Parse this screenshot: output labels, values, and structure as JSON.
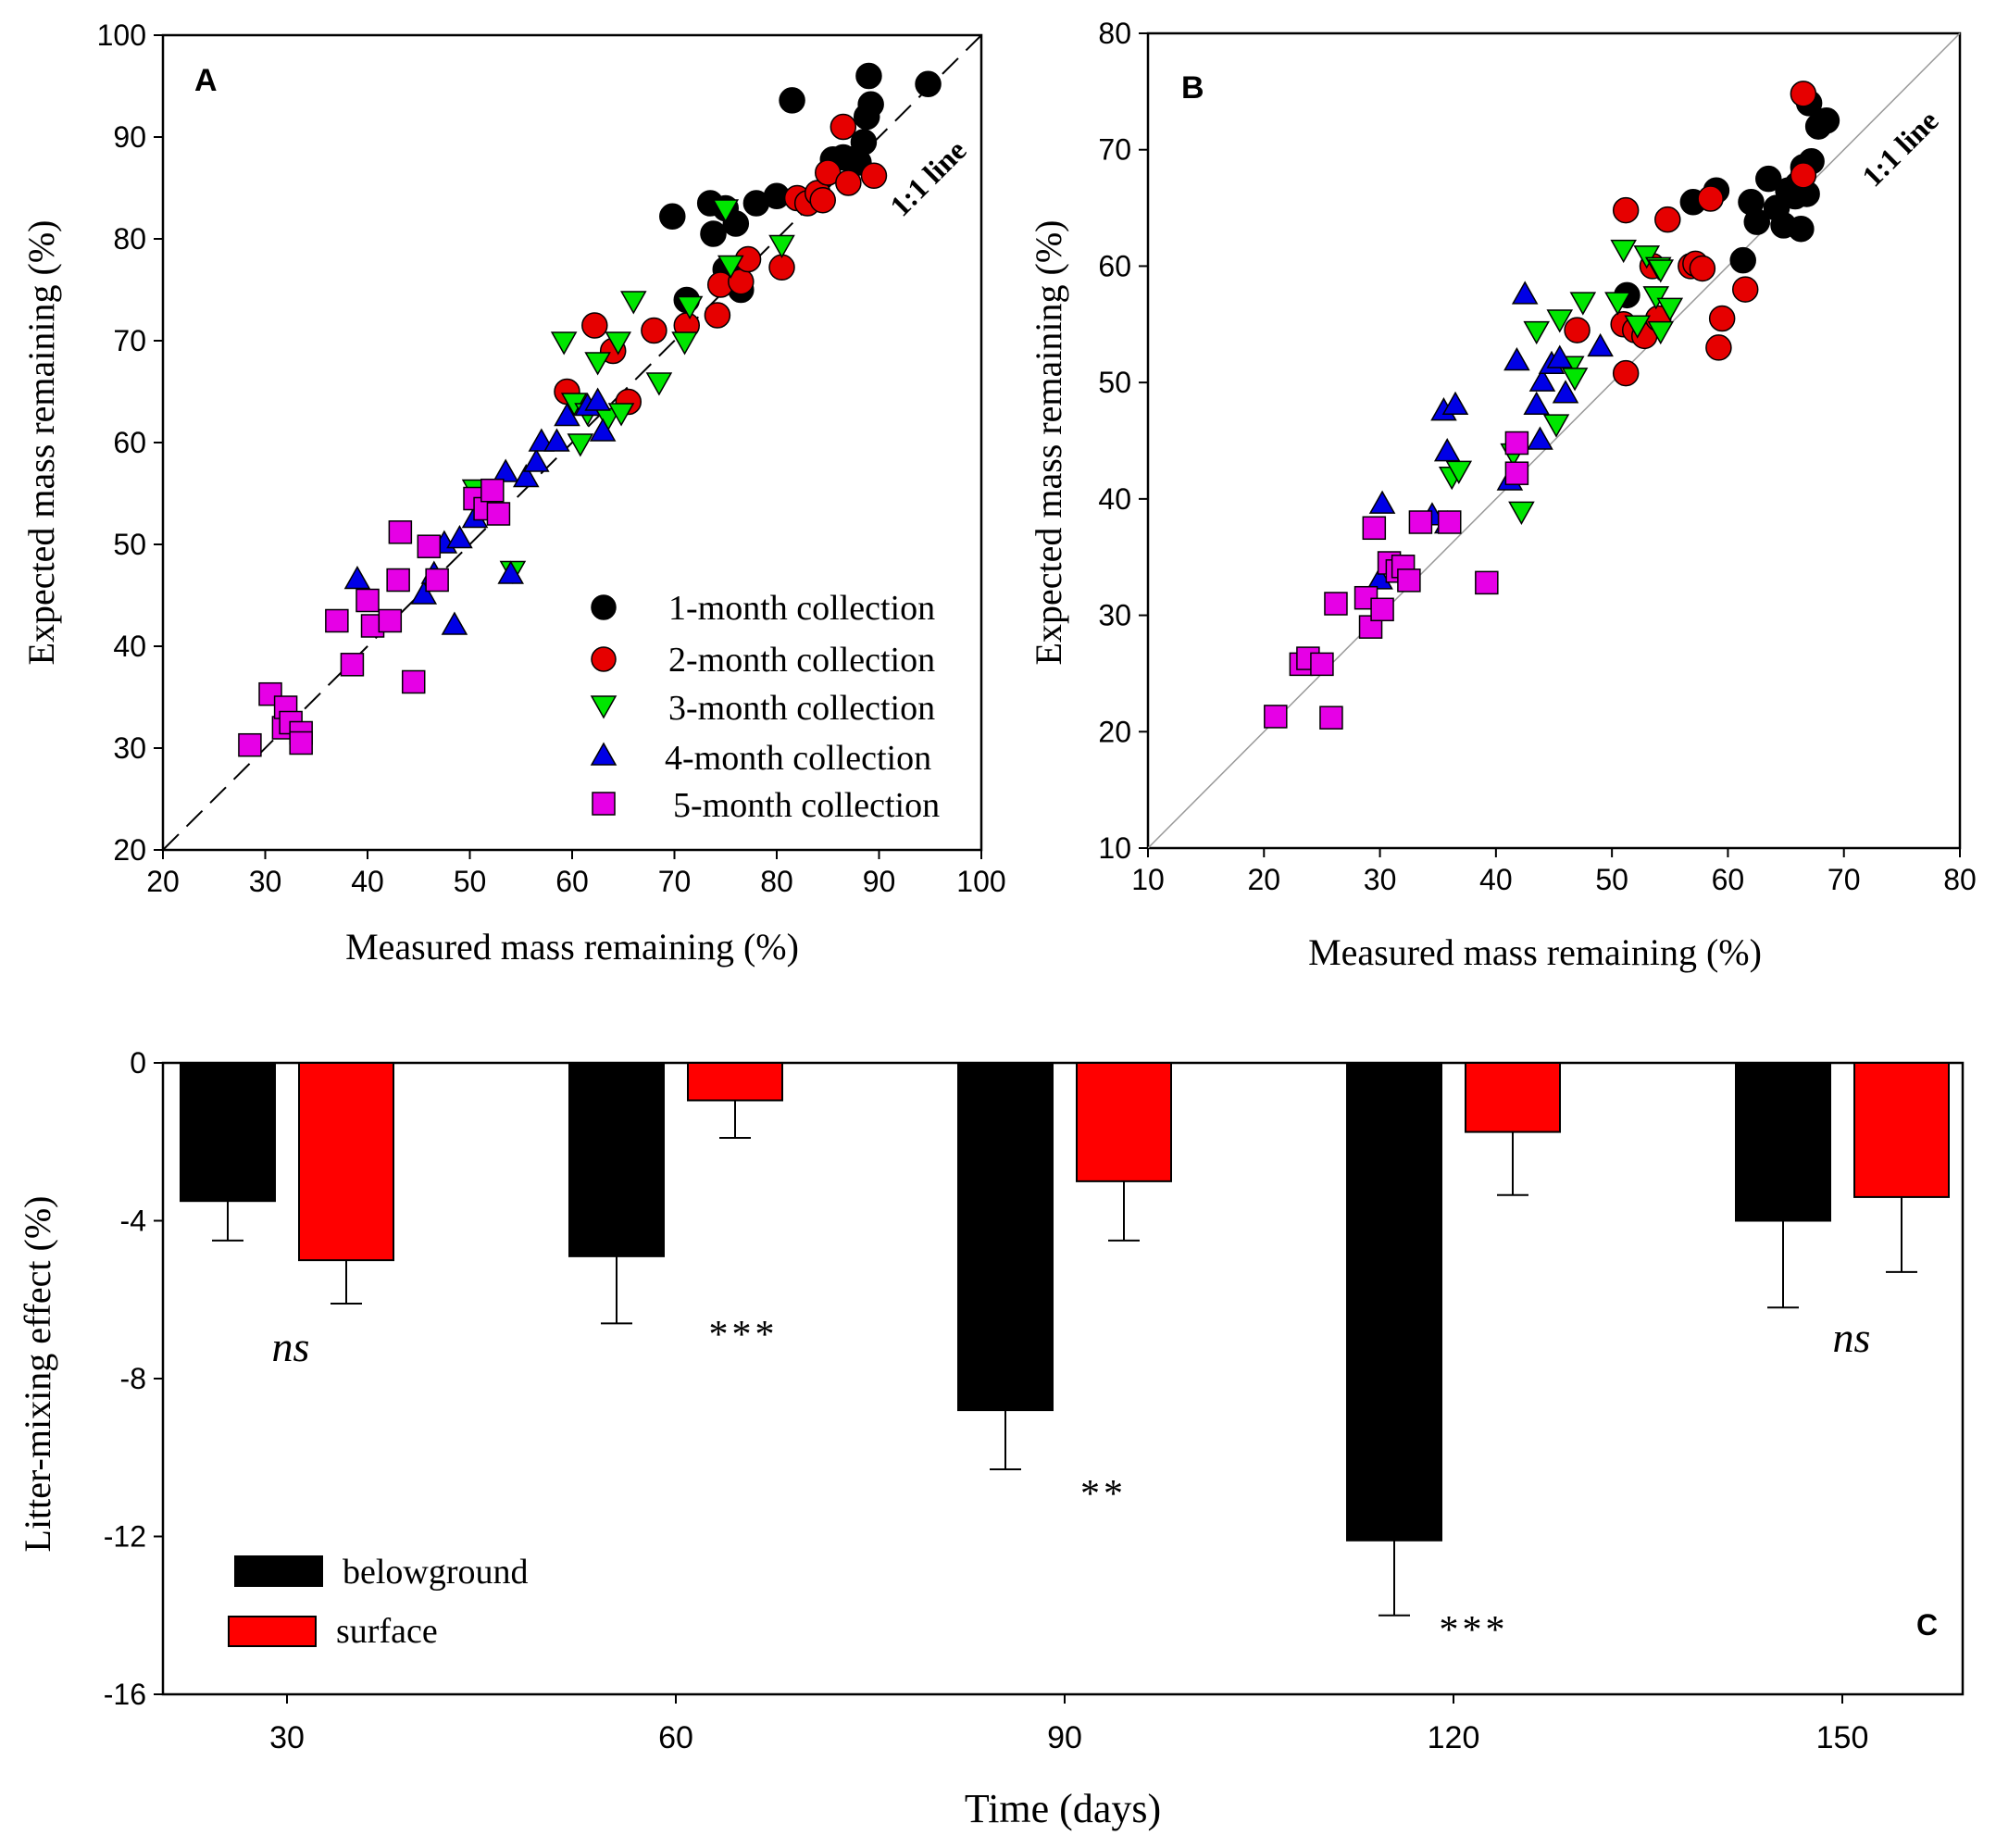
{
  "chart_data": [
    {
      "panel_label": "A",
      "type": "scatter",
      "xlabel": "Measured mass remaining (%)",
      "ylabel": "Expected mass remaining (%)",
      "xlim": [
        20,
        100
      ],
      "ylim": [
        20,
        100
      ],
      "xticks": [
        20,
        30,
        40,
        50,
        60,
        70,
        80,
        90,
        100
      ],
      "yticks": [
        20,
        30,
        40,
        50,
        60,
        70,
        80,
        90,
        100
      ],
      "reference_line_label": "1:1 line",
      "legend_position": "bottom-right",
      "series": [
        {
          "name": "1-month collection",
          "marker": "circle",
          "color": "#000000",
          "points": [
            [
              69.8,
              82.2
            ],
            [
              73.5,
              83.5
            ],
            [
              75.0,
              83.0
            ],
            [
              73.8,
              80.5
            ],
            [
              76.0,
              81.5
            ],
            [
              78.0,
              83.5
            ],
            [
              80.0,
              84.2
            ],
            [
              81.5,
              93.6
            ],
            [
              85.5,
              87.8
            ],
            [
              86.5,
              88.0
            ],
            [
              87.2,
              87.8
            ],
            [
              88.0,
              87.5
            ],
            [
              88.5,
              89.5
            ],
            [
              88.8,
              92.0
            ],
            [
              89.0,
              96.0
            ],
            [
              89.2,
              93.2
            ],
            [
              94.8,
              95.2
            ],
            [
              71.2,
              74.0
            ],
            [
              75.0,
              77.0
            ],
            [
              76.5,
              75.0
            ]
          ]
        },
        {
          "name": "2-month collection",
          "marker": "circle",
          "color": "#e60000",
          "points": [
            [
              59.5,
              65.0
            ],
            [
              62.2,
              71.5
            ],
            [
              64.0,
              69.0
            ],
            [
              65.5,
              64.0
            ],
            [
              68.0,
              71.0
            ],
            [
              71.2,
              71.5
            ],
            [
              74.2,
              72.5
            ],
            [
              74.5,
              75.5
            ],
            [
              76.5,
              75.8
            ],
            [
              77.2,
              78.0
            ],
            [
              80.5,
              77.2
            ],
            [
              82.0,
              84.0
            ],
            [
              83.0,
              83.5
            ],
            [
              84.0,
              84.5
            ],
            [
              84.5,
              83.8
            ],
            [
              85.0,
              86.5
            ],
            [
              86.5,
              91.0
            ],
            [
              87.0,
              85.5
            ],
            [
              89.5,
              86.2
            ]
          ]
        },
        {
          "name": "3-month collection",
          "marker": "triangle-down",
          "color": "#00e600",
          "points": [
            [
              50.5,
              55.5
            ],
            [
              54.2,
              47.5
            ],
            [
              59.2,
              70.0
            ],
            [
              60.2,
              64.0
            ],
            [
              60.8,
              60.0
            ],
            [
              61.5,
              63.0
            ],
            [
              62.5,
              68.0
            ],
            [
              63.5,
              62.5
            ],
            [
              64.5,
              70.0
            ],
            [
              64.8,
              63.0
            ],
            [
              66.0,
              74.0
            ],
            [
              68.5,
              66.0
            ],
            [
              71.0,
              70.0
            ],
            [
              71.5,
              73.5
            ],
            [
              75.0,
              83.0
            ],
            [
              75.5,
              77.5
            ],
            [
              80.5,
              79.5
            ]
          ]
        },
        {
          "name": "4-month collection",
          "marker": "triangle-up",
          "color": "#0000e6",
          "points": [
            [
              39.0,
              46.5
            ],
            [
              45.5,
              45.0
            ],
            [
              46.5,
              47.0
            ],
            [
              47.5,
              50.0
            ],
            [
              48.5,
              42.0
            ],
            [
              49.0,
              50.5
            ],
            [
              50.5,
              52.5
            ],
            [
              51.5,
              54.5
            ],
            [
              53.5,
              57.0
            ],
            [
              54.0,
              47.0
            ],
            [
              55.5,
              56.5
            ],
            [
              56.5,
              58.0
            ],
            [
              57.0,
              60.0
            ],
            [
              58.5,
              60.0
            ],
            [
              59.5,
              62.5
            ],
            [
              61.5,
              63.5
            ],
            [
              62.5,
              64.0
            ],
            [
              63.0,
              61.0
            ]
          ]
        },
        {
          "name": "5-month collection",
          "marker": "square",
          "color": "#e600e6",
          "points": [
            [
              28.5,
              30.3
            ],
            [
              30.5,
              35.3
            ],
            [
              31.8,
              32.0
            ],
            [
              32.0,
              34.0
            ],
            [
              32.5,
              32.5
            ],
            [
              33.5,
              31.5
            ],
            [
              33.5,
              30.5
            ],
            [
              37.0,
              42.5
            ],
            [
              38.5,
              38.2
            ],
            [
              40.0,
              44.5
            ],
            [
              40.5,
              42.0
            ],
            [
              42.2,
              42.5
            ],
            [
              43.0,
              46.5
            ],
            [
              43.2,
              51.2
            ],
            [
              44.5,
              36.5
            ],
            [
              46.0,
              49.8
            ],
            [
              46.8,
              46.5
            ],
            [
              50.5,
              54.5
            ],
            [
              51.5,
              53.5
            ],
            [
              52.2,
              55.3
            ],
            [
              52.8,
              53.0
            ]
          ]
        }
      ]
    },
    {
      "panel_label": "B",
      "type": "scatter",
      "xlabel": "Measured mass remaining (%)",
      "ylabel": "Expected mass remaining (%)",
      "xlim": [
        10,
        80
      ],
      "ylim": [
        10,
        80
      ],
      "xticks": [
        10,
        20,
        30,
        40,
        50,
        60,
        70,
        80
      ],
      "yticks": [
        10,
        20,
        30,
        40,
        50,
        60,
        70,
        80
      ],
      "reference_line_label": "1:1 line",
      "series": [
        {
          "name": "1-month collection",
          "marker": "circle",
          "color": "#000000",
          "points": [
            [
              51.3,
              57.5
            ],
            [
              57.0,
              65.5
            ],
            [
              59.0,
              66.5
            ],
            [
              61.3,
              60.5
            ],
            [
              62.0,
              65.5
            ],
            [
              62.5,
              63.8
            ],
            [
              63.5,
              67.5
            ],
            [
              64.2,
              65.0
            ],
            [
              64.8,
              63.5
            ],
            [
              65.2,
              66.5
            ],
            [
              65.8,
              66.0
            ],
            [
              66.3,
              63.2
            ],
            [
              66.5,
              68.5
            ],
            [
              66.8,
              66.2
            ],
            [
              67.0,
              74.0
            ],
            [
              67.2,
              69.0
            ],
            [
              67.8,
              72.0
            ],
            [
              68.5,
              72.5
            ],
            [
              66.0,
              67.0
            ]
          ]
        },
        {
          "name": "2-month collection",
          "marker": "circle",
          "color": "#e60000",
          "points": [
            [
              47.0,
              54.5
            ],
            [
              51.0,
              55.0
            ],
            [
              51.2,
              64.8
            ],
            [
              51.2,
              50.8
            ],
            [
              52.0,
              54.5
            ],
            [
              52.8,
              54.0
            ],
            [
              53.5,
              60.0
            ],
            [
              54.0,
              55.5
            ],
            [
              54.8,
              64.0
            ],
            [
              56.8,
              60.0
            ],
            [
              57.2,
              60.2
            ],
            [
              57.8,
              59.8
            ],
            [
              58.5,
              65.8
            ],
            [
              59.2,
              53.0
            ],
            [
              59.5,
              55.5
            ],
            [
              61.5,
              58.0
            ],
            [
              66.5,
              74.8
            ],
            [
              66.5,
              67.8
            ]
          ]
        },
        {
          "name": "3-month collection",
          "marker": "triangle-down",
          "color": "#00e600",
          "points": [
            [
              36.2,
              42.0
            ],
            [
              36.8,
              42.5
            ],
            [
              41.5,
              44.0
            ],
            [
              42.2,
              39.0
            ],
            [
              43.5,
              54.5
            ],
            [
              45.2,
              46.5
            ],
            [
              45.5,
              55.5
            ],
            [
              46.5,
              51.5
            ],
            [
              46.8,
              50.5
            ],
            [
              47.5,
              57.0
            ],
            [
              50.5,
              57.0
            ],
            [
              51.0,
              61.5
            ],
            [
              52.2,
              55.0
            ],
            [
              53.0,
              61.0
            ],
            [
              53.8,
              57.5
            ],
            [
              54.0,
              60.0
            ],
            [
              54.2,
              59.8
            ],
            [
              54.2,
              54.5
            ],
            [
              55.0,
              56.5
            ]
          ]
        },
        {
          "name": "4-month collection",
          "marker": "triangle-up",
          "color": "#0000e6",
          "points": [
            [
              30.0,
              33.0
            ],
            [
              30.2,
              39.5
            ],
            [
              34.5,
              38.5
            ],
            [
              35.5,
              47.5
            ],
            [
              35.8,
              44.0
            ],
            [
              35.8,
              37.8
            ],
            [
              36.5,
              48.0
            ],
            [
              41.2,
              41.5
            ],
            [
              41.8,
              51.8
            ],
            [
              42.5,
              57.5
            ],
            [
              43.5,
              48.0
            ],
            [
              43.8,
              45.0
            ],
            [
              44.0,
              50.0
            ],
            [
              44.8,
              51.5
            ],
            [
              45.5,
              52.0
            ],
            [
              46.0,
              49.0
            ],
            [
              49.0,
              53.0
            ]
          ]
        },
        {
          "name": "5-month collection",
          "marker": "square",
          "color": "#e600e6",
          "points": [
            [
              21.0,
              21.3
            ],
            [
              23.2,
              25.8
            ],
            [
              23.8,
              26.3
            ],
            [
              25.0,
              25.8
            ],
            [
              25.8,
              21.2
            ],
            [
              26.2,
              31.0
            ],
            [
              28.8,
              31.5
            ],
            [
              29.2,
              29.0
            ],
            [
              29.5,
              37.5
            ],
            [
              30.2,
              30.5
            ],
            [
              30.8,
              34.5
            ],
            [
              31.5,
              33.8
            ],
            [
              32.0,
              34.2
            ],
            [
              32.5,
              33.0
            ],
            [
              33.5,
              38.0
            ],
            [
              36.0,
              38.0
            ],
            [
              39.2,
              32.8
            ],
            [
              41.8,
              42.2
            ],
            [
              41.8,
              44.8
            ]
          ]
        }
      ]
    },
    {
      "panel_label": "C",
      "type": "bar",
      "xlabel": "Time (days)",
      "ylabel": "Litter-mixing effect (%)",
      "categories": [
        "30",
        "60",
        "90",
        "120",
        "150"
      ],
      "ylim": [
        -16,
        0
      ],
      "yticks": [
        0,
        -4,
        -8,
        -12,
        -16
      ],
      "legend_position": "bottom-left",
      "series": [
        {
          "name": "belowground",
          "color": "#000000",
          "values": [
            -3.5,
            -4.9,
            -8.8,
            -12.1,
            -4.0
          ],
          "errors": [
            1.0,
            1.7,
            1.5,
            1.9,
            2.2
          ]
        },
        {
          "name": "surface",
          "color": "#ff0000",
          "values": [
            -5.0,
            -0.95,
            -3.0,
            -1.75,
            -3.4
          ],
          "errors": [
            1.1,
            0.95,
            1.5,
            1.6,
            1.9
          ]
        }
      ],
      "annotations": [
        {
          "category": "30",
          "text": "ns",
          "italic": true
        },
        {
          "category": "60",
          "text": "***",
          "italic": false
        },
        {
          "category": "90",
          "text": "**",
          "italic": false
        },
        {
          "category": "120",
          "text": "***",
          "italic": false
        },
        {
          "category": "150",
          "text": "ns",
          "italic": true
        }
      ]
    }
  ]
}
